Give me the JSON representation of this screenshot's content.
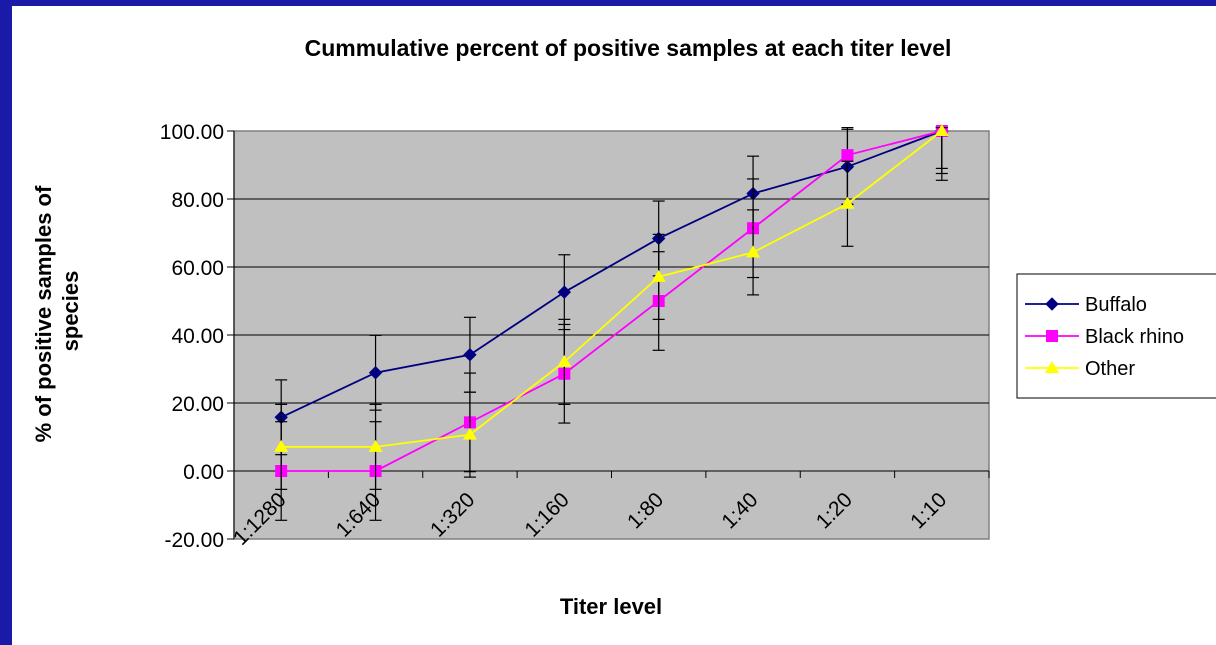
{
  "chart_data": {
    "type": "line",
    "title": "Cummulative percent of positive samples at each titer level",
    "xlabel": "Titer level",
    "ylabel": [
      "% of positive samples of",
      "species"
    ],
    "categories": [
      "1:1280",
      "1:640",
      "1:320",
      "1:160",
      "1:80",
      "1:40",
      "1:20",
      "1:10"
    ],
    "ylim": [
      -20,
      100
    ],
    "yticks": [
      "100.00",
      "80.00",
      "60.00",
      "40.00",
      "20.00",
      "0.00",
      "-20.00"
    ],
    "grid": true,
    "plot_background": "#c0c0c0",
    "legend_position": "right",
    "series": [
      {
        "name": "Buffalo",
        "color": "#000080",
        "marker": "diamond",
        "values": [
          15.8,
          28.9,
          34.2,
          52.6,
          68.4,
          81.6,
          89.5,
          100
        ],
        "error": [
          11,
          11,
          11,
          11,
          11,
          11,
          11,
          11
        ]
      },
      {
        "name": "Black rhino",
        "color": "#ff00ff",
        "marker": "square",
        "values": [
          0,
          0,
          14.3,
          28.6,
          50.0,
          71.4,
          92.9,
          100
        ],
        "error": [
          14.5,
          14.5,
          14.5,
          14.5,
          14.5,
          14.5,
          14.5,
          14.5
        ]
      },
      {
        "name": "Other",
        "color": "#ffff00",
        "marker": "triangle",
        "values": [
          7.1,
          7.1,
          10.7,
          32.1,
          57.1,
          64.3,
          78.6,
          100
        ],
        "error": [
          12.5,
          12.5,
          12.5,
          12.5,
          12.5,
          12.5,
          12.5,
          12.5
        ]
      }
    ]
  }
}
